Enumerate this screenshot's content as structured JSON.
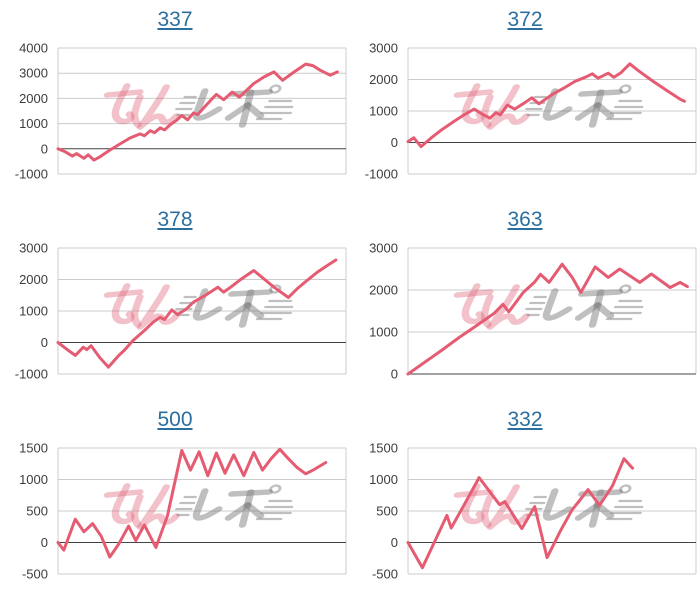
{
  "page": {
    "background": "#ffffff",
    "layout": "2x3-grid-of-slump-graphs"
  },
  "colors": {
    "grid": "#cccccc",
    "baseline": "#444444",
    "tick_label": "#3d3d3d",
    "line": "#e55c72",
    "title_link": "#2b6f9f",
    "watermark_pink": "rgba(222,100,122,0.40)",
    "watermark_gray": "rgba(128,128,128,0.50)"
  },
  "watermark": {
    "text": "みんレポ",
    "pink_part": "みん",
    "gray_part": "レポ"
  },
  "chart_data": [
    {
      "type": "line",
      "title": "337",
      "ylim": [
        -1000,
        4000
      ],
      "yticks": [
        4000,
        3000,
        2000,
        1000,
        0,
        -1000
      ],
      "grid": true,
      "legend": "none",
      "xlabel": "",
      "ylabel": "",
      "x_unit": "fraction-of-plot-width",
      "series": [
        {
          "name": "payout-differential",
          "x": [
            0,
            0.025,
            0.05,
            0.065,
            0.09,
            0.105,
            0.125,
            0.145,
            0.18,
            0.215,
            0.25,
            0.285,
            0.3,
            0.32,
            0.335,
            0.355,
            0.37,
            0.39,
            0.41,
            0.43,
            0.45,
            0.47,
            0.485,
            0.535,
            0.55,
            0.575,
            0.605,
            0.63,
            0.68,
            0.715,
            0.75,
            0.78,
            0.82,
            0.86,
            0.885,
            0.91,
            0.945,
            0.97
          ],
          "y": [
            0,
            -120,
            -290,
            -190,
            -375,
            -240,
            -450,
            -320,
            -50,
            190,
            430,
            590,
            520,
            720,
            640,
            830,
            750,
            960,
            1120,
            1320,
            1150,
            1420,
            1360,
            1990,
            2160,
            1950,
            2250,
            2050,
            2590,
            2850,
            3050,
            2720,
            3050,
            3360,
            3300,
            3120,
            2920,
            3050
          ]
        }
      ]
    },
    {
      "type": "line",
      "title": "372",
      "ylim": [
        -1000,
        3000
      ],
      "yticks": [
        3000,
        2000,
        1000,
        0,
        -1000
      ],
      "grid": true,
      "legend": "none",
      "xlabel": "",
      "ylabel": "",
      "x_unit": "fraction-of-plot-width",
      "series": [
        {
          "name": "payout-differential",
          "x": [
            0,
            0.02,
            0.045,
            0.08,
            0.115,
            0.155,
            0.195,
            0.23,
            0.26,
            0.285,
            0.305,
            0.32,
            0.345,
            0.37,
            0.405,
            0.43,
            0.455,
            0.5,
            0.545,
            0.58,
            0.615,
            0.64,
            0.66,
            0.695,
            0.715,
            0.74,
            0.77,
            0.8,
            0.85,
            0.9,
            0.945,
            0.96
          ],
          "y": [
            30,
            150,
            -130,
            140,
            390,
            640,
            880,
            1060,
            890,
            770,
            950,
            880,
            1190,
            1060,
            1260,
            1420,
            1230,
            1520,
            1750,
            1940,
            2070,
            2180,
            2040,
            2200,
            2070,
            2220,
            2500,
            2280,
            1950,
            1640,
            1370,
            1310
          ]
        }
      ]
    },
    {
      "type": "line",
      "title": "378",
      "ylim": [
        -1000,
        3000
      ],
      "yticks": [
        3000,
        2000,
        1000,
        0,
        -1000
      ],
      "grid": true,
      "legend": "none",
      "xlabel": "",
      "ylabel": "",
      "x_unit": "fraction-of-plot-width",
      "series": [
        {
          "name": "payout-differential",
          "x": [
            0,
            0.03,
            0.06,
            0.088,
            0.1,
            0.115,
            0.145,
            0.175,
            0.21,
            0.23,
            0.26,
            0.3,
            0.33,
            0.355,
            0.37,
            0.395,
            0.415,
            0.445,
            0.47,
            0.51,
            0.555,
            0.575,
            0.6,
            0.63,
            0.655,
            0.68,
            0.715,
            0.75,
            0.8,
            0.83,
            0.865,
            0.9,
            0.935,
            0.965
          ],
          "y": [
            0,
            -210,
            -410,
            -150,
            -225,
            -100,
            -480,
            -780,
            -420,
            -250,
            60,
            380,
            640,
            800,
            730,
            1035,
            890,
            1060,
            1280,
            1490,
            1755,
            1600,
            1760,
            1970,
            2130,
            2285,
            2020,
            1755,
            1430,
            1700,
            1970,
            2230,
            2445,
            2620
          ]
        }
      ]
    },
    {
      "type": "line",
      "title": "363",
      "ylim": [
        0,
        3000
      ],
      "yticks": [
        3000,
        2000,
        1000,
        0
      ],
      "grid": true,
      "legend": "none",
      "xlabel": "",
      "ylabel": "",
      "x_unit": "fraction-of-plot-width",
      "series": [
        {
          "name": "payout-differential",
          "x": [
            0,
            0.06,
            0.12,
            0.18,
            0.24,
            0.3,
            0.33,
            0.35,
            0.4,
            0.44,
            0.46,
            0.49,
            0.535,
            0.57,
            0.6,
            0.65,
            0.695,
            0.735,
            0.805,
            0.845,
            0.91,
            0.945,
            0.97
          ],
          "y": [
            0,
            290,
            580,
            880,
            1160,
            1450,
            1660,
            1480,
            1940,
            2190,
            2375,
            2180,
            2615,
            2300,
            1940,
            2550,
            2300,
            2500,
            2180,
            2380,
            2060,
            2180,
            2080
          ]
        }
      ]
    },
    {
      "type": "line",
      "title": "500",
      "ylim": [
        -500,
        1500
      ],
      "yticks": [
        1500,
        1000,
        500,
        0,
        -500
      ],
      "grid": true,
      "legend": "none",
      "xlabel": "",
      "ylabel": "",
      "x_unit": "fraction-of-plot-width",
      "series": [
        {
          "name": "payout-differential",
          "x": [
            0,
            0.02,
            0.06,
            0.09,
            0.12,
            0.15,
            0.18,
            0.21,
            0.245,
            0.27,
            0.3,
            0.34,
            0.38,
            0.43,
            0.46,
            0.49,
            0.52,
            0.55,
            0.58,
            0.61,
            0.645,
            0.68,
            0.71,
            0.74,
            0.77,
            0.8,
            0.83,
            0.86,
            0.89,
            0.93
          ],
          "y": [
            0,
            -120,
            370,
            170,
            300,
            100,
            -230,
            -30,
            260,
            30,
            280,
            -80,
            420,
            1460,
            1150,
            1440,
            1060,
            1420,
            1100,
            1390,
            1060,
            1430,
            1150,
            1330,
            1480,
            1330,
            1190,
            1090,
            1160,
            1270
          ]
        }
      ]
    },
    {
      "type": "line",
      "title": "332",
      "ylim": [
        -500,
        1500
      ],
      "yticks": [
        1500,
        1000,
        500,
        0,
        -500
      ],
      "grid": true,
      "legend": "none",
      "xlabel": "",
      "ylabel": "",
      "x_unit": "fraction-of-plot-width",
      "series": [
        {
          "name": "payout-differential",
          "x": [
            0,
            0.05,
            0.135,
            0.15,
            0.2,
            0.247,
            0.318,
            0.336,
            0.395,
            0.44,
            0.483,
            0.53,
            0.57,
            0.6,
            0.625,
            0.665,
            0.71,
            0.75,
            0.78
          ],
          "y": [
            0,
            -400,
            430,
            230,
            640,
            1030,
            600,
            650,
            220,
            570,
            -240,
            190,
            520,
            690,
            840,
            590,
            900,
            1330,
            1180
          ]
        }
      ]
    }
  ]
}
